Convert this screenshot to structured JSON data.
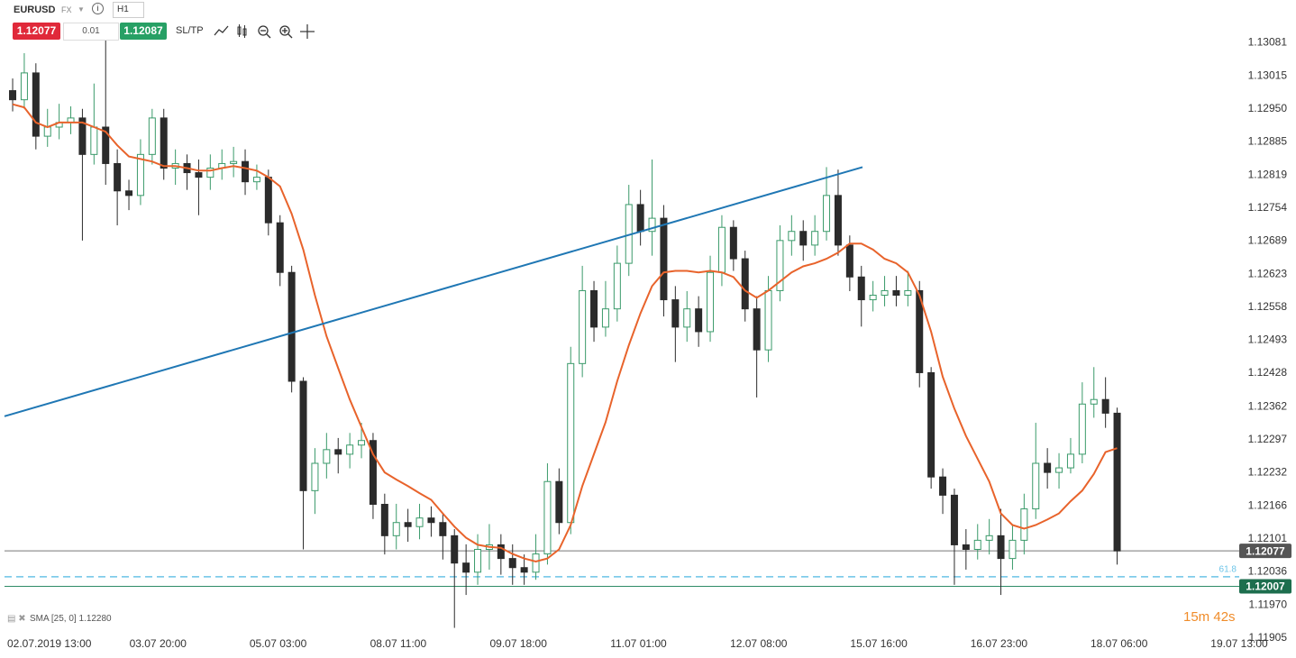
{
  "header": {
    "symbol": "EURUSD",
    "market": "FX",
    "timeframe": "H1",
    "sell_price": "1.12077",
    "lot": "0.01",
    "buy_price": "1.12087",
    "sl_tp": "SL/TP"
  },
  "chart_data": {
    "type": "candlestick",
    "x": [
      -6.5,
      -3.5,
      -0.5,
      2.5,
      5.5,
      8.5,
      11.5,
      14.5,
      17.5,
      20.5,
      23.5,
      26.5,
      29.5,
      32.5,
      35.5,
      38.5,
      41.5,
      44.5,
      47.5,
      50.5,
      53.5,
      56.5,
      59.5,
      62.5,
      65.5,
      68.5,
      71.5,
      74.5,
      77.5,
      80.5,
      83.5,
      86.5,
      89.5,
      92.5,
      95.5,
      98.5,
      101.5,
      104.5,
      107.5,
      110.5,
      113.5,
      116.5,
      119.5,
      122.5,
      125.5,
      128.5,
      131.5,
      134.5,
      137.5,
      140.5,
      143.5,
      146.5,
      149.5,
      152.5,
      155.5,
      158.5,
      161.5,
      164.5,
      167.5,
      170.5,
      173.5,
      176.5,
      179.5,
      182.5,
      185.5,
      188.5,
      191.5,
      194.5,
      197.5,
      200.5,
      203.5,
      206.5,
      209.5,
      212.5,
      215.5,
      218.5,
      221.5,
      224.5,
      227.5,
      230.5,
      233.5,
      236.5,
      239.5,
      242.5,
      245.5,
      248.5,
      251.5,
      254.5,
      257.5,
      260.5,
      263.5,
      266.5,
      269.5,
      272.5,
      275.5,
      278.5
    ],
    "open": [
      1.12986,
      1.12968,
      1.13021,
      1.12896,
      1.12914,
      1.12923,
      1.12932,
      1.1286,
      1.12914,
      1.12842,
      1.12788,
      1.12779,
      1.1286,
      1.12932,
      1.12833,
      1.12842,
      1.12824,
      1.12815,
      1.12833,
      1.12842,
      1.12846,
      1.12806,
      1.12815,
      1.12725,
      1.12627,
      1.12412,
      1.12196,
      1.1225,
      1.12277,
      1.12268,
      1.12286,
      1.12295,
      1.12169,
      1.12107,
      1.12133,
      1.12125,
      1.12142,
      1.12133,
      1.12107,
      1.12053,
      1.12035,
      1.1208,
      1.12089,
      1.12062,
      1.12044,
      1.12035,
      1.12071,
      1.12214,
      1.12133,
      1.12447,
      1.12591,
      1.12519,
      1.12555,
      1.12645,
      1.12761,
      1.12708,
      1.12734,
      1.12573,
      1.12519,
      1.12555,
      1.1251,
      1.12627,
      1.12716,
      1.12654,
      1.12555,
      1.12474,
      1.12591,
      1.1269,
      1.12708,
      1.12681,
      1.12708,
      1.12779,
      1.12681,
      1.12618,
      1.12573,
      1.12582,
      1.12591,
      1.12582,
      1.12591,
      1.12429,
      1.12223,
      1.12187,
      1.12089,
      1.1208,
      1.12098,
      1.12107,
      1.12062,
      1.12098,
      1.1216,
      1.1225,
      1.12232,
      1.12241,
      1.12268,
      1.12367,
      1.12376,
      1.12349
    ],
    "high": [
      1.1301,
      1.1306,
      1.1304,
      1.1295,
      1.1296,
      1.12955,
      1.1295,
      1.13,
      1.13085,
      1.1287,
      1.1281,
      1.1289,
      1.1295,
      1.1295,
      1.1287,
      1.1286,
      1.1285,
      1.1286,
      1.1287,
      1.12875,
      1.1287,
      1.1284,
      1.1283,
      1.1274,
      1.1264,
      1.1242,
      1.1228,
      1.1231,
      1.123,
      1.1231,
      1.1233,
      1.1231,
      1.1219,
      1.1217,
      1.1216,
      1.1217,
      1.12165,
      1.1215,
      1.1212,
      1.1209,
      1.1211,
      1.1213,
      1.1211,
      1.1209,
      1.1207,
      1.1211,
      1.1225,
      1.1224,
      1.1248,
      1.1264,
      1.1261,
      1.1261,
      1.1268,
      1.128,
      1.1279,
      1.1285,
      1.1276,
      1.126,
      1.1259,
      1.1258,
      1.1266,
      1.1274,
      1.1273,
      1.1267,
      1.1258,
      1.1262,
      1.1272,
      1.1274,
      1.1273,
      1.1274,
      1.12835,
      1.1283,
      1.127,
      1.1264,
      1.1261,
      1.1262,
      1.1262,
      1.1263,
      1.1261,
      1.1244,
      1.1224,
      1.122,
      1.1212,
      1.1213,
      1.1214,
      1.1216,
      1.1213,
      1.1219,
      1.1233,
      1.1228,
      1.1227,
      1.123,
      1.1241,
      1.1244,
      1.1242,
      1.1236
    ],
    "low": [
      1.12945,
      1.1295,
      1.1287,
      1.12875,
      1.1289,
      1.129,
      1.1269,
      1.1284,
      1.128,
      1.1272,
      1.1275,
      1.1276,
      1.1284,
      1.1281,
      1.128,
      1.1279,
      1.1274,
      1.1279,
      1.1281,
      1.12815,
      1.1278,
      1.1279,
      1.127,
      1.126,
      1.1239,
      1.1208,
      1.1215,
      1.1222,
      1.1223,
      1.1224,
      1.1226,
      1.1214,
      1.1207,
      1.1208,
      1.12095,
      1.121,
      1.12105,
      1.1206,
      1.11925,
      1.1199,
      1.1201,
      1.1204,
      1.1203,
      1.1201,
      1.1201,
      1.1202,
      1.1205,
      1.1211,
      1.1211,
      1.1242,
      1.1249,
      1.125,
      1.1253,
      1.1262,
      1.1268,
      1.1266,
      1.1254,
      1.1245,
      1.1249,
      1.1248,
      1.1249,
      1.126,
      1.1263,
      1.1253,
      1.1238,
      1.1245,
      1.1257,
      1.1266,
      1.1265,
      1.1266,
      1.1269,
      1.1266,
      1.1259,
      1.1252,
      1.1255,
      1.1256,
      1.1256,
      1.1256,
      1.124,
      1.122,
      1.1215,
      1.1201,
      1.1204,
      1.1206,
      1.1207,
      1.1199,
      1.1204,
      1.1207,
      1.1214,
      1.122,
      1.122,
      1.1223,
      1.1225,
      1.1234,
      1.1232,
      1.1205
    ],
    "close": [
      1.12968,
      1.13021,
      1.12896,
      1.12914,
      1.12923,
      1.12932,
      1.1286,
      1.12914,
      1.12842,
      1.12788,
      1.12779,
      1.1286,
      1.12932,
      1.12833,
      1.12842,
      1.12824,
      1.12815,
      1.12833,
      1.12842,
      1.12846,
      1.12806,
      1.12815,
      1.12725,
      1.12627,
      1.12412,
      1.12196,
      1.1225,
      1.12277,
      1.12268,
      1.12286,
      1.12295,
      1.12169,
      1.12107,
      1.12133,
      1.12125,
      1.12142,
      1.12133,
      1.12107,
      1.12053,
      1.12035,
      1.1208,
      1.12089,
      1.12062,
      1.12044,
      1.12035,
      1.12071,
      1.12214,
      1.12133,
      1.12447,
      1.12591,
      1.12519,
      1.12555,
      1.12645,
      1.12761,
      1.12708,
      1.12734,
      1.12573,
      1.12519,
      1.12555,
      1.1251,
      1.12627,
      1.12716,
      1.12654,
      1.12555,
      1.12474,
      1.12591,
      1.1269,
      1.12708,
      1.12681,
      1.12708,
      1.12779,
      1.12681,
      1.12618,
      1.12573,
      1.12582,
      1.12591,
      1.12582,
      1.12591,
      1.12429,
      1.12223,
      1.12187,
      1.12089,
      1.1208,
      1.12098,
      1.12107,
      1.12062,
      1.12098,
      1.1216,
      1.1225,
      1.12232,
      1.12241,
      1.12268,
      1.12367,
      1.12376,
      1.12349,
      1.12077
    ],
    "up_color": "#3a9a6a",
    "down_color": "#2b2b2b",
    "indicator": {
      "name": "SMA [25, 0] 1.12280",
      "color": "#e8632b",
      "values": [
        1.12959,
        1.12953,
        1.12923,
        1.12914,
        1.12923,
        1.12923,
        1.12923,
        1.12914,
        1.12905,
        1.12878,
        1.12856,
        1.12851,
        1.12846,
        1.12837,
        1.12837,
        1.12833,
        1.12828,
        1.12828,
        1.12833,
        1.12837,
        1.12833,
        1.12828,
        1.12815,
        1.12797,
        1.12743,
        1.12672,
        1.12582,
        1.12501,
        1.12438,
        1.12376,
        1.12322,
        1.12268,
        1.12232,
        1.12218,
        1.12205,
        1.12191,
        1.12178,
        1.12151,
        1.12125,
        1.12103,
        1.12089,
        1.12085,
        1.12083,
        1.12071,
        1.12062,
        1.12056,
        1.12062,
        1.1208,
        1.12128,
        1.12205,
        1.12268,
        1.12331,
        1.12412,
        1.12483,
        1.12546,
        1.126,
        1.12627,
        1.1263,
        1.1263,
        1.12627,
        1.1263,
        1.12627,
        1.12618,
        1.12591,
        1.12577,
        1.12591,
        1.12609,
        1.12627,
        1.12639,
        1.12645,
        1.12654,
        1.12666,
        1.12684,
        1.12684,
        1.12672,
        1.12654,
        1.12645,
        1.12627,
        1.12582,
        1.1251,
        1.12421,
        1.12358,
        1.12304,
        1.12259,
        1.12214,
        1.12151,
        1.12128,
        1.12121,
        1.12128,
        1.12139,
        1.12151,
        1.12175,
        1.12196,
        1.12229,
        1.12272,
        1.1228
      ]
    },
    "trend_line": {
      "color": "#1f77b4",
      "x": [
        -8.6,
        212.8
      ],
      "y": [
        1.12343,
        1.12835
      ]
    },
    "price_lines": [
      {
        "value": 1.12077,
        "label": "1.12077",
        "color": "#777777",
        "box": "#555555"
      },
      {
        "value": 1.12007,
        "label": "1.12007",
        "color": "#2e8b67",
        "box": "#1d6e4e"
      },
      {
        "value": 1.12026,
        "label": "61.8",
        "color": "#6cc4e8",
        "dashed": true
      }
    ],
    "countdown": "15m 42s",
    "xlim": [
      -8.6,
      310
    ],
    "ylim": [
      1.1191,
      1.13165
    ],
    "xticks": [
      {
        "value": 0,
        "label": "02.07.2019 13:00"
      },
      {
        "value": 31,
        "label": "03.07 20:00"
      },
      {
        "value": 62,
        "label": "05.07 03:00"
      },
      {
        "value": 93,
        "label": "08.07 11:00"
      },
      {
        "value": 124,
        "label": "09.07 18:00"
      },
      {
        "value": 155,
        "label": "11.07 01:00"
      },
      {
        "value": 186,
        "label": "12.07 08:00"
      },
      {
        "value": 217,
        "label": "15.07 16:00"
      },
      {
        "value": 248,
        "label": "16.07 23:00"
      },
      {
        "value": 279,
        "label": "18.07 06:00"
      },
      {
        "value": 310,
        "label": "19.07 13:00"
      }
    ],
    "yticks": [
      1.13081,
      1.13015,
      {
        "value": 1.1295,
        "label": "1.12950"
      },
      1.12885,
      1.12819,
      1.12754,
      1.12689,
      1.12623,
      1.12558,
      1.12493,
      1.12428,
      1.12362,
      1.12297,
      1.12232,
      1.12166,
      1.12101,
      1.12036,
      {
        "value": 1.1197,
        "label": "1.11970"
      },
      1.11905
    ]
  }
}
